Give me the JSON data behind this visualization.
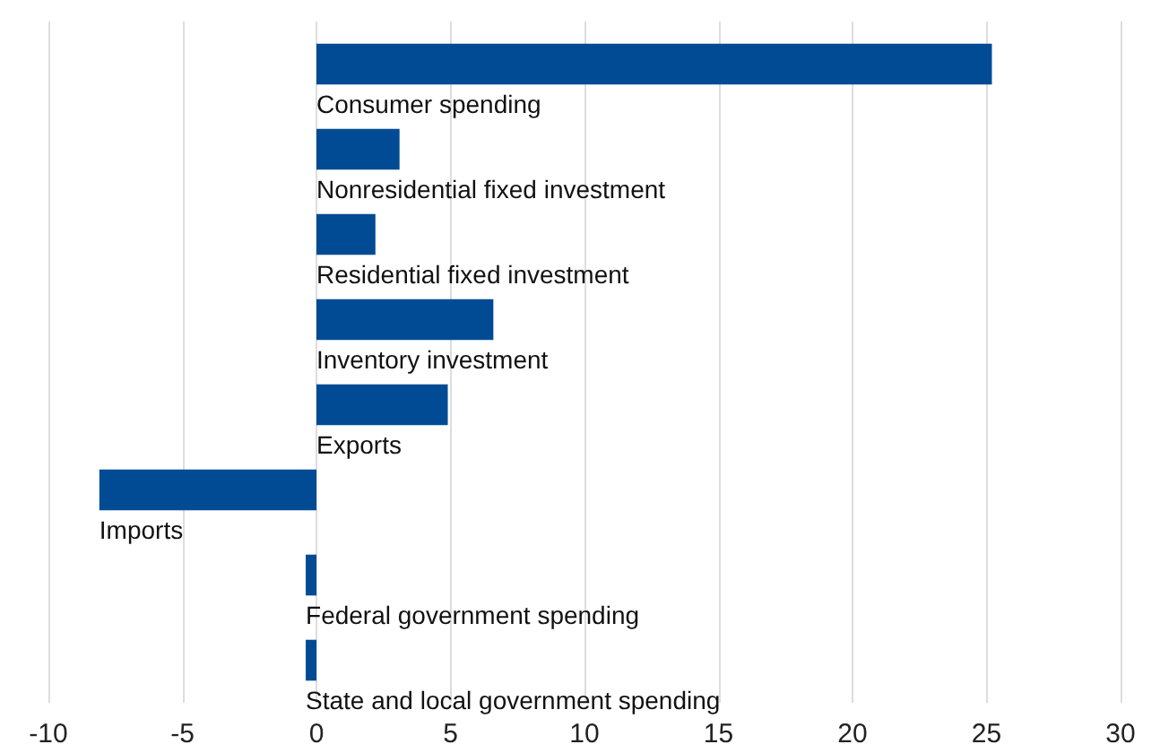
{
  "chart_data": {
    "type": "bar",
    "orientation": "horizontal",
    "categories": [
      "Consumer spending",
      "Nonresidential fixed investment",
      "Residential fixed investment",
      "Inventory investment",
      "Exports",
      "Imports",
      "Federal government spending",
      "State and local government spending"
    ],
    "values": [
      25.2,
      3.1,
      2.2,
      6.6,
      4.9,
      -8.1,
      -0.4,
      -0.4
    ],
    "color": "#004b93",
    "xlim": [
      -10,
      30
    ],
    "xticks": [
      -10,
      -5,
      0,
      5,
      10,
      15,
      20,
      25,
      30
    ],
    "grid": "x",
    "tick_labels": "x"
  }
}
